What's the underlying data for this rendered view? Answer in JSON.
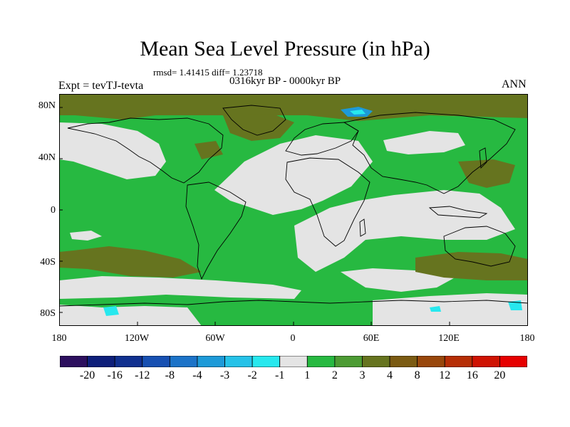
{
  "title": "Mean Sea Level Pressure (in hPa)",
  "stats": "rmsd= 1.41415  diff= 1.23718",
  "period": "0316kyr BP - 0000kyr BP",
  "experiment": "Expt = tevTJ-tevta",
  "season": "ANN",
  "lat_ticks": [
    "80N",
    "40N",
    "0",
    "40S",
    "80S"
  ],
  "lon_ticks": [
    "180",
    "120W",
    "60W",
    "0",
    "60E",
    "120E",
    "180"
  ],
  "colorbar": {
    "labels": [
      "-20",
      "-16",
      "-12",
      "-8",
      "-4",
      "-3",
      "-2",
      "-1",
      "1",
      "2",
      "3",
      "4",
      "8",
      "12",
      "16",
      "20"
    ],
    "colors": [
      "#2c0f5e",
      "#0e1f7a",
      "#10308f",
      "#1750b2",
      "#1c73c8",
      "#1d9ad8",
      "#25c2e8",
      "#27e8ee",
      "#e4e4e4",
      "#27b941",
      "#4c9b33",
      "#66741f",
      "#7b5b12",
      "#98470b",
      "#b62e06",
      "#cf1303",
      "#e60000"
    ]
  },
  "colors": {
    "neutral": "#e4e4e4",
    "green": "#27b941",
    "olive": "#66741f",
    "brown": "#7b5b12",
    "blue": "#1d9ad8",
    "cyan": "#27e8ee"
  }
}
